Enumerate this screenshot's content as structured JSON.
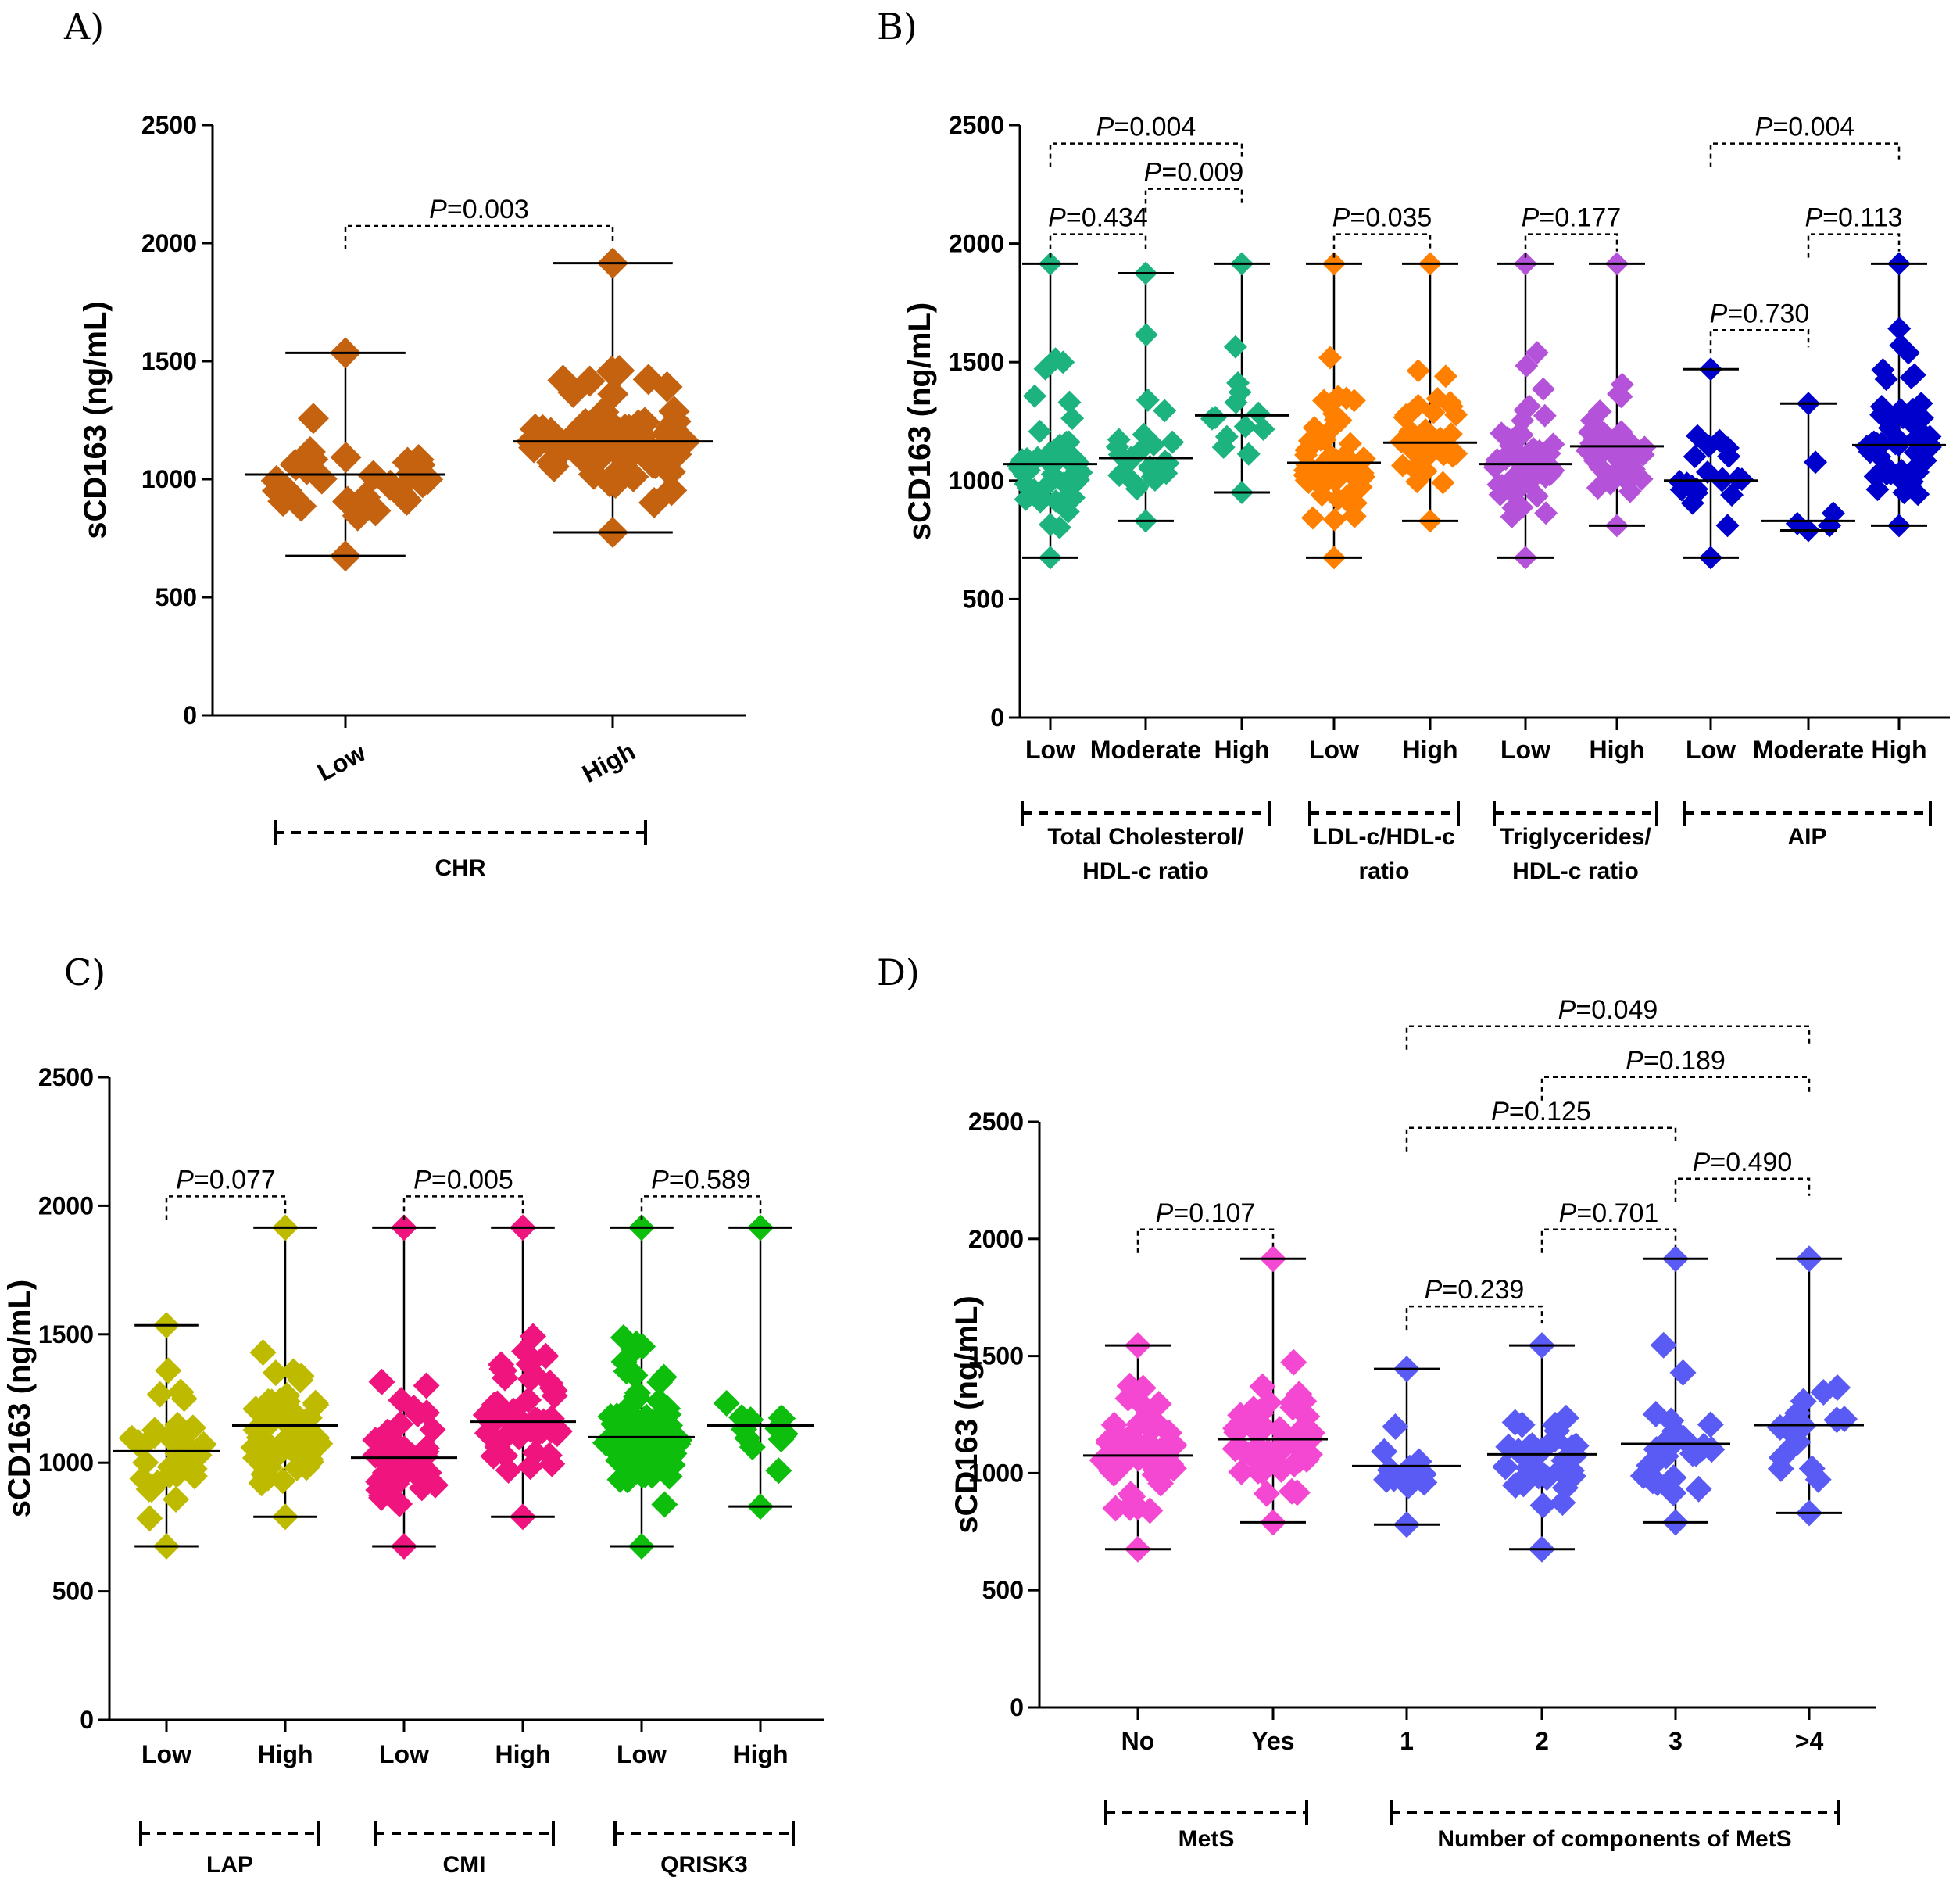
{
  "figure": {
    "panel_letters": [
      "A)",
      "B)",
      "C)",
      "D)"
    ]
  },
  "chart_data": [
    {
      "panel": "A)",
      "type": "scatter",
      "subtype": "dot-plot with median and range",
      "title": "",
      "ylabel": "sCD163  (ng/mL)",
      "xlabel": "",
      "ylim": [
        0,
        2500
      ],
      "yticks": [
        0,
        500,
        1000,
        1500,
        2000,
        2500
      ],
      "grid": false,
      "categories": [
        "Low",
        "High"
      ],
      "category_label_rotation": "angled",
      "groups": [
        {
          "label": "CHR",
          "categories": [
            "Low",
            "High"
          ]
        }
      ],
      "series": [
        {
          "name": "Low",
          "color": "#C5620F",
          "n_points": 32,
          "median": 1020,
          "min": 675,
          "max": 1535
        },
        {
          "name": "High",
          "color": "#C5620F",
          "n_points": 70,
          "median": 1160,
          "min": 775,
          "max": 1915
        }
      ],
      "comparisons": [
        {
          "from": "Low",
          "to": "High",
          "label": "P=0.003",
          "p": 0.003
        }
      ]
    },
    {
      "panel": "B)",
      "type": "scatter",
      "subtype": "dot-plot with median and range",
      "title": "",
      "ylabel": "sCD163  (ng/mL)",
      "xlabel": "",
      "ylim": [
        0,
        2500
      ],
      "yticks": [
        0,
        500,
        1000,
        1500,
        2000,
        2500
      ],
      "grid": false,
      "categories": [
        "Low",
        "Moderate",
        "High",
        "Low",
        "High",
        "Low",
        "High",
        "Low",
        "Moderate",
        "High"
      ],
      "groups": [
        {
          "label": "Total Cholesterol/\nHDL-c ratio",
          "lines": [
            "Total Cholesterol/",
            "HDL-c ratio"
          ],
          "indices": [
            0,
            2
          ]
        },
        {
          "label": "LDL-c/HDL-c\nratio",
          "lines": [
            "LDL-c/HDL-c",
            "ratio"
          ],
          "indices": [
            3,
            4
          ]
        },
        {
          "label": "Triglycerides/\nHDL-c ratio",
          "lines": [
            "Triglycerides/",
            "HDL-c ratio"
          ],
          "indices": [
            5,
            6
          ]
        },
        {
          "label": "AIP",
          "lines": [
            "AIP"
          ],
          "indices": [
            7,
            9
          ]
        }
      ],
      "series": [
        {
          "name": "TC/HDL-c Low",
          "color": "#1DB37F",
          "n_points": 60,
          "median": 1070,
          "min": 675,
          "max": 1915
        },
        {
          "name": "TC/HDL-c Moderate",
          "color": "#1DB37F",
          "n_points": 30,
          "median": 1095,
          "min": 830,
          "max": 1875
        },
        {
          "name": "TC/HDL-c High",
          "color": "#1DB37F",
          "n_points": 14,
          "median": 1275,
          "min": 950,
          "max": 1915
        },
        {
          "name": "LDL-c/HDL-c Low",
          "color": "#FF8000",
          "n_points": 65,
          "median": 1075,
          "min": 675,
          "max": 1915
        },
        {
          "name": "LDL-c/HDL-c High",
          "color": "#FF8000",
          "n_points": 40,
          "median": 1160,
          "min": 830,
          "max": 1915
        },
        {
          "name": "TG/HDL-c Low",
          "color": "#B452DA",
          "n_points": 55,
          "median": 1070,
          "min": 675,
          "max": 1915
        },
        {
          "name": "TG/HDL-c High",
          "color": "#B452DA",
          "n_points": 50,
          "median": 1145,
          "min": 810,
          "max": 1915
        },
        {
          "name": "AIP Low",
          "color": "#0000CD",
          "n_points": 22,
          "median": 1000,
          "min": 675,
          "max": 1470
        },
        {
          "name": "AIP Moderate",
          "color": "#0000CD",
          "n_points": 6,
          "median": 830,
          "min": 790,
          "max": 1325
        },
        {
          "name": "AIP High",
          "color": "#0000CD",
          "n_points": 60,
          "median": 1150,
          "min": 810,
          "max": 1915
        }
      ],
      "comparisons": [
        {
          "from": 0,
          "to": 2,
          "label": "P=0.004",
          "p": 0.004,
          "level": 3
        },
        {
          "from": 1,
          "to": 2,
          "label": "P=0.009",
          "p": 0.009,
          "level": 2
        },
        {
          "from": 0,
          "to": 1,
          "label": "P=0.434",
          "p": 0.434,
          "level": 1
        },
        {
          "from": 3,
          "to": 4,
          "label": "P=0.035",
          "p": 0.035,
          "level": 1
        },
        {
          "from": 5,
          "to": 6,
          "label": "P=0.177",
          "p": 0.177,
          "level": 1
        },
        {
          "from": 7,
          "to": 9,
          "label": "P=0.004",
          "p": 0.004,
          "level": 3
        },
        {
          "from": 8,
          "to": 9,
          "label": "P=0.113",
          "p": 0.113,
          "level": 1
        },
        {
          "from": 7,
          "to": 8,
          "label": "P=0.730",
          "p": 0.73,
          "level": 0
        }
      ]
    },
    {
      "panel": "C)",
      "type": "scatter",
      "subtype": "dot-plot with median and range",
      "title": "",
      "ylabel": "sCD163  (ng/mL)",
      "xlabel": "",
      "ylim": [
        0,
        2500
      ],
      "yticks": [
        0,
        500,
        1000,
        1500,
        2000,
        2500
      ],
      "grid": false,
      "categories": [
        "Low",
        "High",
        "Low",
        "High",
        "Low",
        "High"
      ],
      "groups": [
        {
          "label": "LAP",
          "lines": [
            "LAP"
          ],
          "indices": [
            0,
            1
          ]
        },
        {
          "label": "CMI",
          "lines": [
            "CMI"
          ],
          "indices": [
            2,
            3
          ]
        },
        {
          "label": "QRISK3",
          "lines": [
            "QRISK3"
          ],
          "indices": [
            4,
            5
          ]
        }
      ],
      "series": [
        {
          "name": "LAP Low",
          "color": "#BDBA00",
          "n_points": 40,
          "median": 1045,
          "min": 675,
          "max": 1535
        },
        {
          "name": "LAP High",
          "color": "#BDBA00",
          "n_points": 60,
          "median": 1145,
          "min": 790,
          "max": 1915
        },
        {
          "name": "CMI Low",
          "color": "#F0147F",
          "n_points": 50,
          "median": 1020,
          "min": 675,
          "max": 1915
        },
        {
          "name": "CMI High",
          "color": "#F0147F",
          "n_points": 55,
          "median": 1160,
          "min": 790,
          "max": 1915
        },
        {
          "name": "QRISK3 Low",
          "color": "#0DBE0D",
          "n_points": 90,
          "median": 1100,
          "min": 675,
          "max": 1915
        },
        {
          "name": "QRISK3 High",
          "color": "#0DBE0D",
          "n_points": 14,
          "median": 1145,
          "min": 830,
          "max": 1915
        }
      ],
      "comparisons": [
        {
          "from": 0,
          "to": 1,
          "label": "P=0.077",
          "p": 0.077,
          "level": 1
        },
        {
          "from": 2,
          "to": 3,
          "label": "P=0.005",
          "p": 0.005,
          "level": 1
        },
        {
          "from": 4,
          "to": 5,
          "label": "P=0.589",
          "p": 0.589,
          "level": 1
        }
      ]
    },
    {
      "panel": "D)",
      "type": "scatter",
      "subtype": "dot-plot with median and range",
      "title": "",
      "ylabel": "sCD163  (ng/mL)",
      "xlabel": "",
      "ylim": [
        0,
        2500
      ],
      "yticks": [
        0,
        500,
        1000,
        1500,
        2000,
        2500
      ],
      "grid": false,
      "categories": [
        "No",
        "Yes",
        "1",
        "2",
        "3",
        ">4"
      ],
      "groups": [
        {
          "label": "MetS",
          "lines": [
            "MetS"
          ],
          "indices": [
            0,
            1
          ]
        },
        {
          "label": "Number of components of MetS",
          "lines": [
            "Number of components of MetS"
          ],
          "indices": [
            2,
            5
          ]
        }
      ],
      "series": [
        {
          "name": "MetS No",
          "color": "#F548D2",
          "n_points": 55,
          "median": 1075,
          "min": 675,
          "max": 1545
        },
        {
          "name": "MetS Yes",
          "color": "#F548D2",
          "n_points": 50,
          "median": 1145,
          "min": 790,
          "max": 1915
        },
        {
          "name": "Components 1",
          "color": "#5A5AF5",
          "n_points": 14,
          "median": 1030,
          "min": 780,
          "max": 1445
        },
        {
          "name": "Components 2",
          "color": "#5A5AF5",
          "n_points": 35,
          "median": 1080,
          "min": 675,
          "max": 1545
        },
        {
          "name": "Components 3",
          "color": "#5A5AF5",
          "n_points": 30,
          "median": 1125,
          "min": 790,
          "max": 1915
        },
        {
          "name": "Components >4",
          "color": "#5A5AF5",
          "n_points": 17,
          "median": 1205,
          "min": 830,
          "max": 1915
        }
      ],
      "comparisons": [
        {
          "from": 2,
          "to": 5,
          "label": "P=0.049",
          "p": 0.049,
          "level": 5
        },
        {
          "from": 3,
          "to": 5,
          "label": "P=0.189",
          "p": 0.189,
          "level": 4
        },
        {
          "from": 2,
          "to": 4,
          "label": "P=0.125",
          "p": 0.125,
          "level": 3
        },
        {
          "from": 4,
          "to": 5,
          "label": "P=0.490",
          "p": 0.49,
          "level": 2
        },
        {
          "from": 3,
          "to": 4,
          "label": "P=0.701",
          "p": 0.701,
          "level": 1
        },
        {
          "from": 0,
          "to": 1,
          "label": "P=0.107",
          "p": 0.107,
          "level": 1
        },
        {
          "from": 2,
          "to": 3,
          "label": "P=0.239",
          "p": 0.239,
          "level": 0
        }
      ]
    }
  ]
}
